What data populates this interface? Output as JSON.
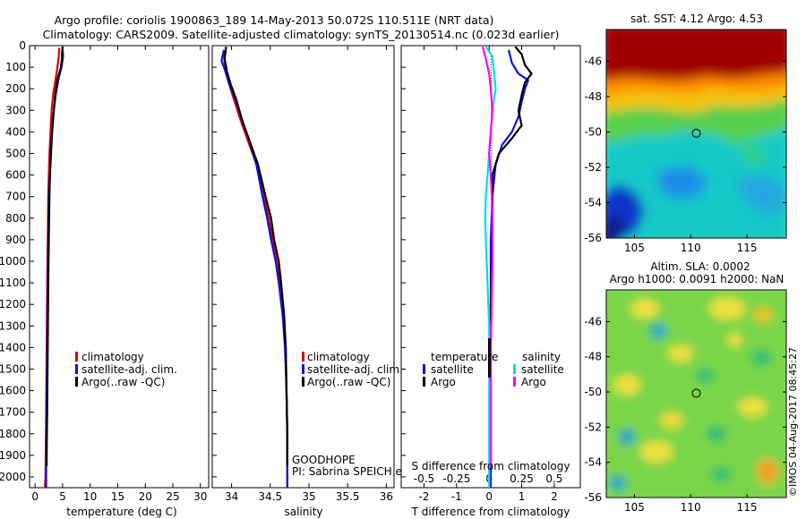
{
  "header": {
    "line1": "Argo profile: coriolis 1900863_189 14-May-2013 50.072S 110.511E (NRT data)",
    "line2": "Climatology: CARS2009. Satellite-adjusted climatology: synTS_20130514.nc (0.023d earlier)"
  },
  "colors": {
    "climatology": "#e00000",
    "satellite": "#1010e0",
    "argo": "#000000",
    "sat_salinity": "#00e0e0",
    "argo_salinity": "#ff00ff"
  },
  "chart_data": [
    {
      "type": "line",
      "xlabel": "temperature (deg C)",
      "xlim": [
        -1,
        31.5
      ],
      "ylim": [
        0,
        2050
      ],
      "xticks": [
        0,
        5,
        10,
        15,
        20,
        25,
        30
      ],
      "yticks": [
        0,
        100,
        200,
        300,
        400,
        500,
        600,
        700,
        800,
        900,
        1000,
        1100,
        1200,
        1300,
        1400,
        1500,
        1600,
        1700,
        1800,
        1900,
        2000
      ],
      "legend": [
        "climatology",
        "satellite-adj. clim.",
        "Argo(..raw -QC)"
      ],
      "series": [
        {
          "name": "climatology",
          "color": "#e00000",
          "points": [
            [
              4.4,
              10
            ],
            [
              4.3,
              50
            ],
            [
              4.0,
              110
            ],
            [
              3.7,
              160
            ],
            [
              3.3,
              220
            ],
            [
              3.0,
              300
            ],
            [
              2.8,
              400
            ],
            [
              2.6,
              500
            ],
            [
              2.5,
              600
            ],
            [
              2.4,
              700
            ],
            [
              2.3,
              900
            ],
            [
              2.2,
              1100
            ],
            [
              2.1,
              1400
            ],
            [
              2.0,
              1700
            ],
            [
              1.9,
              2000
            ],
            [
              1.8,
              2050
            ]
          ]
        },
        {
          "name": "satellite-adj. clim.",
          "color": "#1010e0",
          "points": [
            [
              5.0,
              10
            ],
            [
              5.1,
              50
            ],
            [
              4.8,
              100
            ],
            [
              4.3,
              150
            ],
            [
              3.8,
              220
            ],
            [
              3.4,
              300
            ],
            [
              3.1,
              400
            ],
            [
              2.8,
              500
            ],
            [
              2.7,
              600
            ],
            [
              2.5,
              700
            ],
            [
              2.4,
              900
            ],
            [
              2.3,
              1100
            ],
            [
              2.2,
              1400
            ],
            [
              2.1,
              1700
            ],
            [
              2.0,
              2000
            ],
            [
              2.0,
              2050
            ]
          ]
        },
        {
          "name": "Argo(..raw -QC)",
          "color": "#000000",
          "points": [
            [
              5.0,
              5
            ],
            [
              4.9,
              30
            ],
            [
              4.9,
              60
            ],
            [
              4.6,
              110
            ],
            [
              4.1,
              150
            ],
            [
              3.7,
              220
            ],
            [
              3.4,
              300
            ],
            [
              3.1,
              400
            ],
            [
              2.9,
              500
            ],
            [
              2.7,
              600
            ],
            [
              2.6,
              700
            ],
            [
              2.5,
              900
            ],
            [
              2.4,
              1100
            ],
            [
              2.3,
              1400
            ],
            [
              2.2,
              1700
            ],
            [
              2.1,
              1900
            ],
            [
              2.1,
              1950
            ]
          ]
        }
      ]
    },
    {
      "type": "line",
      "xlabel": "salinity",
      "xlim": [
        33.75,
        36.1
      ],
      "ylim": [
        0,
        2050
      ],
      "xticks": [
        34,
        34.5,
        35,
        35.5,
        36
      ],
      "legend": [
        "climatology",
        "satellite-adj. clim.",
        "Argo(..raw -QC)"
      ],
      "annotations": [
        "GOODHOPE",
        "PI: Sabrina SPEICH et Michel ARHAN"
      ],
      "series": [
        {
          "name": "climatology",
          "color": "#e00000",
          "points": [
            [
              33.9,
              20
            ],
            [
              33.91,
              80
            ],
            [
              33.93,
              120
            ],
            [
              33.97,
              180
            ],
            [
              34.03,
              250
            ],
            [
              34.12,
              350
            ],
            [
              34.22,
              450
            ],
            [
              34.32,
              550
            ],
            [
              34.42,
              700
            ],
            [
              34.48,
              800
            ],
            [
              34.53,
              900
            ],
            [
              34.58,
              1000
            ],
            [
              34.63,
              1100
            ],
            [
              34.67,
              1250
            ],
            [
              34.7,
              1400
            ],
            [
              34.71,
              1600
            ],
            [
              34.72,
              1800
            ],
            [
              34.72,
              2000
            ],
            [
              34.72,
              2050
            ]
          ]
        },
        {
          "name": "satellite-adj. clim.",
          "color": "#1010e0",
          "points": [
            [
              33.9,
              20
            ],
            [
              33.87,
              70
            ],
            [
              33.92,
              120
            ],
            [
              33.97,
              180
            ],
            [
              34.05,
              250
            ],
            [
              34.14,
              350
            ],
            [
              34.24,
              450
            ],
            [
              34.32,
              550
            ],
            [
              34.4,
              700
            ],
            [
              34.46,
              800
            ],
            [
              34.51,
              900
            ],
            [
              34.57,
              1000
            ],
            [
              34.61,
              1100
            ],
            [
              34.66,
              1250
            ],
            [
              34.69,
              1400
            ],
            [
              34.71,
              1600
            ],
            [
              34.72,
              1800
            ],
            [
              34.72,
              2000
            ],
            [
              34.72,
              2050
            ]
          ]
        },
        {
          "name": "Argo(..raw -QC)",
          "color": "#000000",
          "points": [
            [
              33.93,
              5
            ],
            [
              33.91,
              60
            ],
            [
              33.94,
              120
            ],
            [
              33.99,
              180
            ],
            [
              34.06,
              250
            ],
            [
              34.14,
              350
            ],
            [
              34.24,
              450
            ],
            [
              34.34,
              550
            ],
            [
              34.44,
              700
            ],
            [
              34.51,
              800
            ],
            [
              34.55,
              900
            ],
            [
              34.61,
              1000
            ],
            [
              34.64,
              1100
            ],
            [
              34.68,
              1250
            ],
            [
              34.7,
              1400
            ],
            [
              34.71,
              1600
            ],
            [
              34.72,
              1800
            ],
            [
              34.72,
              1950
            ]
          ]
        }
      ]
    },
    {
      "type": "line",
      "xlabel": "T difference from climatology",
      "xlabel2": "S difference from climatology",
      "xlim": [
        -2.7,
        2.8
      ],
      "ylim": [
        0,
        2050
      ],
      "xticks": [
        -2,
        -1,
        0,
        1,
        2
      ],
      "xticks2": [
        "-0.5",
        "-0.25",
        "0",
        "0.25",
        "0.5"
      ],
      "legend_temperature_title": "temperature",
      "legend_salinity_title": "salinity",
      "legend": [
        "satellite",
        "Argo",
        "satellite",
        "Argo"
      ],
      "series": [
        {
          "name": "temperature satellite",
          "color": "#1010e0",
          "points": [
            [
              0.6,
              20
            ],
            [
              0.7,
              80
            ],
            [
              0.9,
              130
            ],
            [
              1.2,
              160
            ],
            [
              1.1,
              200
            ],
            [
              1.0,
              260
            ],
            [
              0.9,
              330
            ],
            [
              0.7,
              400
            ],
            [
              0.4,
              460
            ],
            [
              0.2,
              550
            ],
            [
              0.1,
              700
            ],
            [
              0.05,
              900
            ],
            [
              0.05,
              1200
            ],
            [
              0.05,
              1600
            ],
            [
              0.05,
              2000
            ],
            [
              0.05,
              2050
            ]
          ]
        },
        {
          "name": "temperature Argo",
          "color": "#000000",
          "points": [
            [
              0.8,
              5
            ],
            [
              1.0,
              40
            ],
            [
              1.1,
              90
            ],
            [
              1.3,
              130
            ],
            [
              1.1,
              170
            ],
            [
              1.0,
              230
            ],
            [
              0.9,
              300
            ],
            [
              1.0,
              370
            ],
            [
              0.7,
              430
            ],
            [
              0.3,
              500
            ],
            [
              0.1,
              600
            ],
            [
              0.1,
              800
            ],
            [
              0.05,
              1200
            ],
            [
              0.05,
              1600
            ],
            [
              0.05,
              1950
            ]
          ]
        },
        {
          "name": "salinity satellite",
          "color": "#00e0e0",
          "points": [
            [
              -0.1,
              5
            ],
            [
              0.1,
              50
            ],
            [
              0.15,
              120
            ],
            [
              0.2,
              200
            ],
            [
              0.1,
              300
            ],
            [
              0.05,
              400
            ],
            [
              0.0,
              500
            ],
            [
              -0.05,
              600
            ],
            [
              -0.1,
              700
            ],
            [
              -0.12,
              800
            ],
            [
              -0.1,
              900
            ],
            [
              -0.05,
              1100
            ],
            [
              0.0,
              1300
            ],
            [
              0.0,
              1600
            ],
            [
              0.0,
              2000
            ],
            [
              0.0,
              2050
            ]
          ]
        },
        {
          "name": "salinity Argo",
          "color": "#ff00ff",
          "points": [
            [
              -0.2,
              5
            ],
            [
              -0.1,
              60
            ],
            [
              0.0,
              130
            ],
            [
              0.05,
              200
            ],
            [
              0.1,
              300
            ],
            [
              0.05,
              400
            ],
            [
              0.0,
              500
            ],
            [
              0.05,
              600
            ],
            [
              0.08,
              700
            ],
            [
              0.1,
              800
            ],
            [
              0.1,
              1000
            ],
            [
              0.08,
              1200
            ],
            [
              0.05,
              1400
            ],
            [
              0.05,
              1600
            ],
            [
              0.05,
              1800
            ],
            [
              0.05,
              1950
            ]
          ]
        }
      ]
    }
  ],
  "maps": [
    {
      "title": "sat. SST: 4.12 Argo: 4.53",
      "xticks": [
        105,
        110,
        115
      ],
      "yticks": [
        -46,
        -48,
        -50,
        -52,
        -54,
        -56
      ],
      "marker": {
        "lon": 110.5,
        "lat": -50.07
      }
    },
    {
      "title": "Altim. SLA: 0.0002",
      "subtitle": "Argo h1000: 0.0091 h2000: NaN",
      "xticks": [
        105,
        110,
        115
      ],
      "yticks": [
        -46,
        -48,
        -50,
        -52,
        -54,
        -56
      ],
      "marker": {
        "lon": 110.5,
        "lat": -50.07
      }
    }
  ],
  "credit": "©IMOS 04-Aug-2017 08:45:27"
}
